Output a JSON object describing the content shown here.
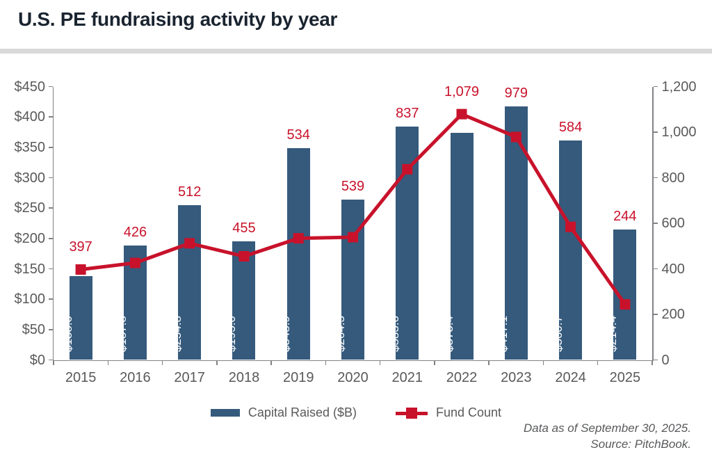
{
  "page": {
    "title": "U.S. PE fundraising activity by year"
  },
  "chart_data": {
    "type": "combo",
    "title": "U.S. PE fundraising activity by year",
    "categories": [
      "2015",
      "2016",
      "2017",
      "2018",
      "2019",
      "2020",
      "2021",
      "2022",
      "2023",
      "2024",
      "2025"
    ],
    "series": [
      {
        "name": "Capital Raised ($B)",
        "type": "bar",
        "axis": "left",
        "color": "#355a7c",
        "values": [
          138.0,
          187.8,
          254.8,
          195.0,
          348.9,
          264.3,
          383.6,
          373.4,
          417.1,
          360.7,
          214.4
        ],
        "labels": [
          "$138.0",
          "$187.8",
          "$254.8",
          "$195.0",
          "$348.9",
          "$264.3",
          "$383.6",
          "$373.4",
          "$417.1",
          "$360.7",
          "$214.4"
        ]
      },
      {
        "name": "Fund Count",
        "type": "line",
        "axis": "right",
        "color": "#c8122b",
        "values": [
          397,
          426,
          512,
          455,
          534,
          539,
          837,
          1079,
          979,
          584,
          244
        ],
        "labels": [
          "397",
          "426",
          "512",
          "455",
          "534",
          "539",
          "837",
          "1,079",
          "979",
          "584",
          "244"
        ]
      }
    ],
    "left_axis": {
      "min": 0,
      "max": 450,
      "tick_values": [
        450,
        400,
        350,
        300,
        250,
        200,
        150,
        100,
        50,
        0
      ],
      "tick_labels": [
        "$450",
        "$400",
        "$350",
        "$300",
        "$250",
        "$200",
        "$150",
        "$100",
        "$50",
        "$0"
      ]
    },
    "right_axis": {
      "min": 0,
      "max": 1200,
      "tick_values": [
        1200,
        1000,
        800,
        600,
        400,
        200,
        0
      ],
      "tick_labels": [
        "1,200",
        "1,000",
        "800",
        "600",
        "400",
        "200",
        "0"
      ]
    },
    "legend_position": "bottom",
    "grid": false,
    "bar_label_color": "#ffffff",
    "axis_text_color": "#595959",
    "axis_line_color": "#808285"
  },
  "footer": {
    "line1": "Data as of September 30, 2025.",
    "line2": "Source: PitchBook."
  }
}
